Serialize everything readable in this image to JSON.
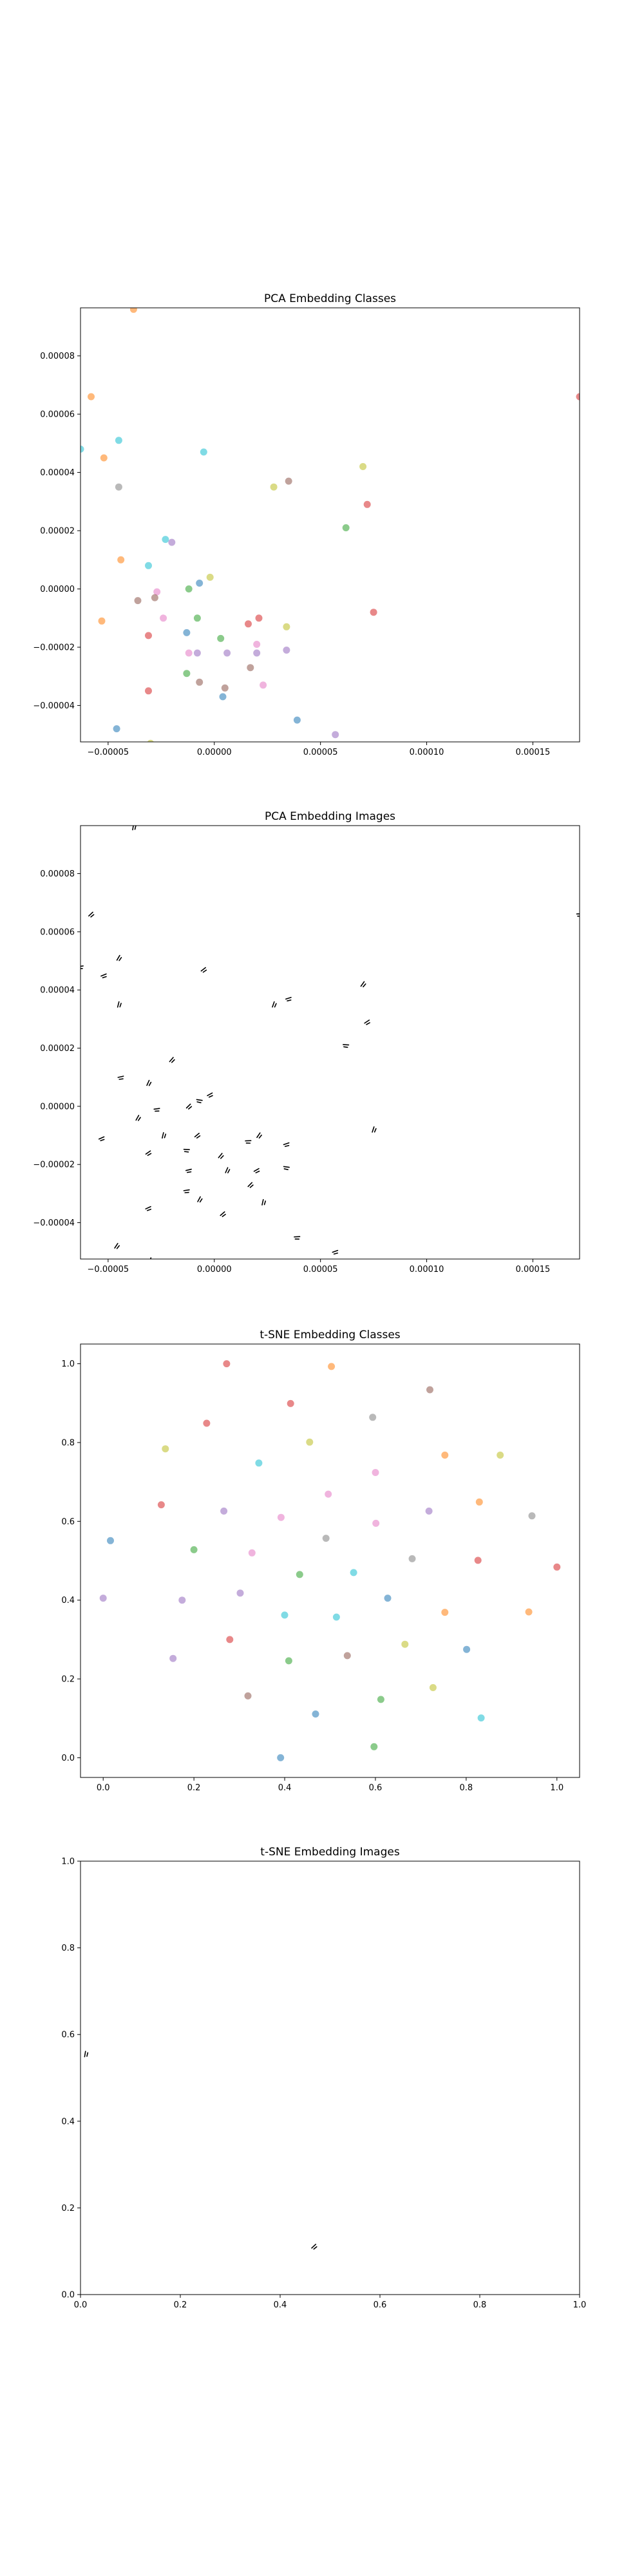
{
  "chart_data": [
    {
      "id": "pca-classes",
      "type": "scatter",
      "title": "PCA Embedding Classes",
      "xlabel": "",
      "ylabel": "",
      "xlim": [
        -6.3e-05,
        0.000172
      ],
      "ylim": [
        -5.25e-05,
        9.65e-05
      ],
      "xticks": [
        -5e-05,
        0.0,
        5e-05,
        0.0001,
        0.00015
      ],
      "xtick_labels": [
        "−0.00005",
        "0.00000",
        "0.00005",
        "0.00010",
        "0.00015"
      ],
      "yticks": [
        -4e-05,
        -2e-05,
        0.0,
        2e-05,
        4e-05,
        6e-05,
        8e-05
      ],
      "ytick_labels": [
        "−0.00004",
        "−0.00002",
        "0.00000",
        "0.00002",
        "0.00004",
        "0.00006",
        "0.00008"
      ],
      "grid": false,
      "legend": "none",
      "points": [
        {
          "x": -3.8e-05,
          "y": 9.6e-05,
          "color": "#ff7f0e"
        },
        {
          "x": -5.8e-05,
          "y": 6.6e-05,
          "color": "#ff7f0e"
        },
        {
          "x": -6.3e-05,
          "y": 4.8e-05,
          "color": "#17becf"
        },
        {
          "x": -4.5e-05,
          "y": 5.1e-05,
          "color": "#17becf"
        },
        {
          "x": -5.2e-05,
          "y": 4.5e-05,
          "color": "#ff7f0e"
        },
        {
          "x": -4.5e-05,
          "y": 3.5e-05,
          "color": "#7f7f7f"
        },
        {
          "x": -5e-06,
          "y": 4.7e-05,
          "color": "#17becf"
        },
        {
          "x": 0.000172,
          "y": 6.6e-05,
          "color": "#d62728"
        },
        {
          "x": 7e-05,
          "y": 4.2e-05,
          "color": "#bcbd22"
        },
        {
          "x": 3.5e-05,
          "y": 3.7e-05,
          "color": "#8c564b"
        },
        {
          "x": 2.8e-05,
          "y": 3.5e-05,
          "color": "#bcbd22"
        },
        {
          "x": 7.2e-05,
          "y": 2.9e-05,
          "color": "#d62728"
        },
        {
          "x": 6.2e-05,
          "y": 2.1e-05,
          "color": "#2ca02c"
        },
        {
          "x": -2.3e-05,
          "y": 1.7e-05,
          "color": "#17becf"
        },
        {
          "x": -2e-05,
          "y": 1.6e-05,
          "color": "#9467bd"
        },
        {
          "x": -4.4e-05,
          "y": 1e-05,
          "color": "#ff7f0e"
        },
        {
          "x": -3.1e-05,
          "y": 8e-06,
          "color": "#17becf"
        },
        {
          "x": -2e-06,
          "y": 4e-06,
          "color": "#bcbd22"
        },
        {
          "x": -7e-06,
          "y": 2e-06,
          "color": "#1f77b4"
        },
        {
          "x": -1.2e-05,
          "y": 0.0,
          "color": "#2ca02c"
        },
        {
          "x": -2.7e-05,
          "y": -1e-06,
          "color": "#e377c2"
        },
        {
          "x": -2.8e-05,
          "y": -3e-06,
          "color": "#8c564b"
        },
        {
          "x": -3.6e-05,
          "y": -4e-06,
          "color": "#8c564b"
        },
        {
          "x": -5.3e-05,
          "y": -1.1e-05,
          "color": "#ff7f0e"
        },
        {
          "x": -2.4e-05,
          "y": -1e-05,
          "color": "#e377c2"
        },
        {
          "x": -8e-06,
          "y": -1e-05,
          "color": "#2ca02c"
        },
        {
          "x": 1.6e-05,
          "y": -1.2e-05,
          "color": "#d62728"
        },
        {
          "x": 2.1e-05,
          "y": -1e-05,
          "color": "#d62728"
        },
        {
          "x": 3.4e-05,
          "y": -1.3e-05,
          "color": "#bcbd22"
        },
        {
          "x": 7.5e-05,
          "y": -8e-06,
          "color": "#d62728"
        },
        {
          "x": -3.1e-05,
          "y": -1.6e-05,
          "color": "#d62728"
        },
        {
          "x": -1.3e-05,
          "y": -1.5e-05,
          "color": "#1f77b4"
        },
        {
          "x": 3e-06,
          "y": -1.7e-05,
          "color": "#2ca02c"
        },
        {
          "x": -1.2e-05,
          "y": -2.2e-05,
          "color": "#e377c2"
        },
        {
          "x": -8e-06,
          "y": -2.2e-05,
          "color": "#9467bd"
        },
        {
          "x": 6e-06,
          "y": -2.2e-05,
          "color": "#9467bd"
        },
        {
          "x": 2e-05,
          "y": -1.9e-05,
          "color": "#e377c2"
        },
        {
          "x": 2e-05,
          "y": -2.2e-05,
          "color": "#9467bd"
        },
        {
          "x": 3.4e-05,
          "y": -2.1e-05,
          "color": "#9467bd"
        },
        {
          "x": 1.7e-05,
          "y": -2.7e-05,
          "color": "#8c564b"
        },
        {
          "x": -1.3e-05,
          "y": -2.9e-05,
          "color": "#2ca02c"
        },
        {
          "x": -7e-06,
          "y": -3.2e-05,
          "color": "#8c564b"
        },
        {
          "x": -3.1e-05,
          "y": -3.5e-05,
          "color": "#d62728"
        },
        {
          "x": 5e-06,
          "y": -3.4e-05,
          "color": "#8c564b"
        },
        {
          "x": 2.3e-05,
          "y": -3.3e-05,
          "color": "#e377c2"
        },
        {
          "x": 4e-06,
          "y": -3.7e-05,
          "color": "#1f77b4"
        },
        {
          "x": 3.9e-05,
          "y": -4.5e-05,
          "color": "#1f77b4"
        },
        {
          "x": -4.6e-05,
          "y": -4.8e-05,
          "color": "#1f77b4"
        },
        {
          "x": 5.7e-05,
          "y": -5e-05,
          "color": "#9467bd"
        },
        {
          "x": -3e-05,
          "y": -5.3e-05,
          "color": "#bcbd22"
        }
      ]
    },
    {
      "id": "pca-images",
      "type": "scatter",
      "title": "PCA Embedding Images",
      "xlabel": "",
      "ylabel": "",
      "xlim": [
        -6.3e-05,
        0.000172
      ],
      "ylim": [
        -5.25e-05,
        9.65e-05
      ],
      "xticks": [
        -5e-05,
        0.0,
        5e-05,
        0.0001,
        0.00015
      ],
      "xtick_labels": [
        "−0.00005",
        "0.00000",
        "0.00005",
        "0.00010",
        "0.00015"
      ],
      "yticks": [
        -4e-05,
        -2e-05,
        0.0,
        2e-05,
        4e-05,
        6e-05,
        8e-05
      ],
      "ytick_labels": [
        "−0.00004",
        "−0.00002",
        "0.00000",
        "0.00002",
        "0.00004",
        "0.00006",
        "0.00008"
      ],
      "grid": false,
      "legend": "none",
      "markers": "image-glyph",
      "points": [
        {
          "x": -3.8e-05,
          "y": 9.6e-05
        },
        {
          "x": -5.8e-05,
          "y": 6.6e-05
        },
        {
          "x": -6.3e-05,
          "y": 4.8e-05
        },
        {
          "x": -4.5e-05,
          "y": 5.1e-05
        },
        {
          "x": -5.2e-05,
          "y": 4.5e-05
        },
        {
          "x": -4.5e-05,
          "y": 3.5e-05
        },
        {
          "x": -5e-06,
          "y": 4.7e-05
        },
        {
          "x": 0.000172,
          "y": 6.6e-05
        },
        {
          "x": 7e-05,
          "y": 4.2e-05
        },
        {
          "x": 3.5e-05,
          "y": 3.7e-05
        },
        {
          "x": 2.8e-05,
          "y": 3.5e-05
        },
        {
          "x": 7.2e-05,
          "y": 2.9e-05
        },
        {
          "x": 6.2e-05,
          "y": 2.1e-05
        },
        {
          "x": -2e-05,
          "y": 1.6e-05
        },
        {
          "x": -4.4e-05,
          "y": 1e-05
        },
        {
          "x": -3.1e-05,
          "y": 8e-06
        },
        {
          "x": -2e-06,
          "y": 4e-06
        },
        {
          "x": -7e-06,
          "y": 2e-06
        },
        {
          "x": -1.2e-05,
          "y": 0.0
        },
        {
          "x": -2.7e-05,
          "y": -1e-06
        },
        {
          "x": -3.6e-05,
          "y": -4e-06
        },
        {
          "x": -5.3e-05,
          "y": -1.1e-05
        },
        {
          "x": -2.4e-05,
          "y": -1e-05
        },
        {
          "x": -8e-06,
          "y": -1e-05
        },
        {
          "x": 1.6e-05,
          "y": -1.2e-05
        },
        {
          "x": 2.1e-05,
          "y": -1e-05
        },
        {
          "x": 3.4e-05,
          "y": -1.3e-05
        },
        {
          "x": 7.5e-05,
          "y": -8e-06
        },
        {
          "x": -3.1e-05,
          "y": -1.6e-05
        },
        {
          "x": -1.3e-05,
          "y": -1.5e-05
        },
        {
          "x": 3e-06,
          "y": -1.7e-05
        },
        {
          "x": -1.2e-05,
          "y": -2.2e-05
        },
        {
          "x": 6e-06,
          "y": -2.2e-05
        },
        {
          "x": 2e-05,
          "y": -2.2e-05
        },
        {
          "x": 3.4e-05,
          "y": -2.1e-05
        },
        {
          "x": 1.7e-05,
          "y": -2.7e-05
        },
        {
          "x": -1.3e-05,
          "y": -2.9e-05
        },
        {
          "x": -7e-06,
          "y": -3.2e-05
        },
        {
          "x": -3.1e-05,
          "y": -3.5e-05
        },
        {
          "x": 2.3e-05,
          "y": -3.3e-05
        },
        {
          "x": 4e-06,
          "y": -3.7e-05
        },
        {
          "x": 3.9e-05,
          "y": -4.5e-05
        },
        {
          "x": -4.6e-05,
          "y": -4.8e-05
        },
        {
          "x": 5.7e-05,
          "y": -5e-05
        },
        {
          "x": -3e-05,
          "y": -5.3e-05
        }
      ]
    },
    {
      "id": "tsne-classes",
      "type": "scatter",
      "title": "t-SNE Embedding Classes",
      "xlabel": "",
      "ylabel": "",
      "xlim": [
        -0.05,
        1.05
      ],
      "ylim": [
        -0.05,
        1.05
      ],
      "xticks": [
        0.0,
        0.2,
        0.4,
        0.6,
        0.8,
        1.0
      ],
      "xtick_labels": [
        "0.0",
        "0.2",
        "0.4",
        "0.6",
        "0.8",
        "1.0"
      ],
      "yticks": [
        0.0,
        0.2,
        0.4,
        0.6,
        0.8,
        1.0
      ],
      "ytick_labels": [
        "0.0",
        "0.2",
        "0.4",
        "0.6",
        "0.8",
        "1.0"
      ],
      "grid": false,
      "legend": "none",
      "points": [
        {
          "x": 0.272,
          "y": 1.0,
          "color": "#d62728"
        },
        {
          "x": 0.503,
          "y": 0.993,
          "color": "#ff7f0e"
        },
        {
          "x": 0.72,
          "y": 0.934,
          "color": "#8c564b"
        },
        {
          "x": 0.413,
          "y": 0.899,
          "color": "#d62728"
        },
        {
          "x": 0.594,
          "y": 0.864,
          "color": "#7f7f7f"
        },
        {
          "x": 0.228,
          "y": 0.849,
          "color": "#d62728"
        },
        {
          "x": 0.455,
          "y": 0.801,
          "color": "#bcbd22"
        },
        {
          "x": 0.137,
          "y": 0.784,
          "color": "#bcbd22"
        },
        {
          "x": 0.753,
          "y": 0.768,
          "color": "#ff7f0e"
        },
        {
          "x": 0.875,
          "y": 0.768,
          "color": "#bcbd22"
        },
        {
          "x": 0.343,
          "y": 0.748,
          "color": "#17becf"
        },
        {
          "x": 0.6,
          "y": 0.724,
          "color": "#e377c2"
        },
        {
          "x": 0.496,
          "y": 0.669,
          "color": "#e377c2"
        },
        {
          "x": 0.829,
          "y": 0.649,
          "color": "#ff7f0e"
        },
        {
          "x": 0.128,
          "y": 0.642,
          "color": "#d62728"
        },
        {
          "x": 0.266,
          "y": 0.626,
          "color": "#9467bd"
        },
        {
          "x": 0.718,
          "y": 0.626,
          "color": "#9467bd"
        },
        {
          "x": 0.945,
          "y": 0.614,
          "color": "#7f7f7f"
        },
        {
          "x": 0.392,
          "y": 0.61,
          "color": "#e377c2"
        },
        {
          "x": 0.601,
          "y": 0.595,
          "color": "#e377c2"
        },
        {
          "x": 0.016,
          "y": 0.551,
          "color": "#1f77b4"
        },
        {
          "x": 0.491,
          "y": 0.557,
          "color": "#7f7f7f"
        },
        {
          "x": 0.2,
          "y": 0.528,
          "color": "#2ca02c"
        },
        {
          "x": 0.328,
          "y": 0.52,
          "color": "#e377c2"
        },
        {
          "x": 0.681,
          "y": 0.505,
          "color": "#7f7f7f"
        },
        {
          "x": 0.826,
          "y": 0.501,
          "color": "#d62728"
        },
        {
          "x": 1.0,
          "y": 0.484,
          "color": "#d62728"
        },
        {
          "x": 0.552,
          "y": 0.47,
          "color": "#17becf"
        },
        {
          "x": 0.433,
          "y": 0.465,
          "color": "#2ca02c"
        },
        {
          "x": 0.302,
          "y": 0.418,
          "color": "#9467bd"
        },
        {
          "x": 0.627,
          "y": 0.405,
          "color": "#1f77b4"
        },
        {
          "x": 0.0,
          "y": 0.405,
          "color": "#9467bd"
        },
        {
          "x": 0.174,
          "y": 0.4,
          "color": "#9467bd"
        },
        {
          "x": 0.753,
          "y": 0.369,
          "color": "#ff7f0e"
        },
        {
          "x": 0.938,
          "y": 0.37,
          "color": "#ff7f0e"
        },
        {
          "x": 0.4,
          "y": 0.362,
          "color": "#17becf"
        },
        {
          "x": 0.514,
          "y": 0.357,
          "color": "#17becf"
        },
        {
          "x": 0.279,
          "y": 0.3,
          "color": "#d62728"
        },
        {
          "x": 0.665,
          "y": 0.288,
          "color": "#bcbd22"
        },
        {
          "x": 0.801,
          "y": 0.275,
          "color": "#1f77b4"
        },
        {
          "x": 0.538,
          "y": 0.259,
          "color": "#8c564b"
        },
        {
          "x": 0.154,
          "y": 0.252,
          "color": "#9467bd"
        },
        {
          "x": 0.409,
          "y": 0.246,
          "color": "#2ca02c"
        },
        {
          "x": 0.727,
          "y": 0.178,
          "color": "#bcbd22"
        },
        {
          "x": 0.319,
          "y": 0.157,
          "color": "#8c564b"
        },
        {
          "x": 0.612,
          "y": 0.148,
          "color": "#2ca02c"
        },
        {
          "x": 0.468,
          "y": 0.111,
          "color": "#1f77b4"
        },
        {
          "x": 0.833,
          "y": 0.101,
          "color": "#17becf"
        },
        {
          "x": 0.597,
          "y": 0.028,
          "color": "#2ca02c"
        },
        {
          "x": 0.391,
          "y": 0.0,
          "color": "#1f77b4"
        }
      ]
    },
    {
      "id": "tsne-images",
      "type": "scatter",
      "title": "t-SNE Embedding Images",
      "xlabel": "",
      "ylabel": "",
      "xlim": [
        0.0,
        1.0
      ],
      "ylim": [
        0.0,
        1.0
      ],
      "xticks": [
        0.0,
        0.2,
        0.4,
        0.6,
        0.8,
        1.0
      ],
      "xtick_labels": [
        "0.0",
        "0.2",
        "0.4",
        "0.6",
        "0.8",
        "1.0"
      ],
      "yticks": [
        0.0,
        0.2,
        0.4,
        0.6,
        0.8,
        1.0
      ],
      "ytick_labels": [
        "0.0",
        "0.2",
        "0.4",
        "0.6",
        "0.8",
        "1.0"
      ],
      "grid": false,
      "legend": "none",
      "markers": "image-glyph",
      "points": [
        {
          "x": 0.01,
          "y": 0.555
        },
        {
          "x": 0.468,
          "y": 0.111
        }
      ]
    }
  ]
}
